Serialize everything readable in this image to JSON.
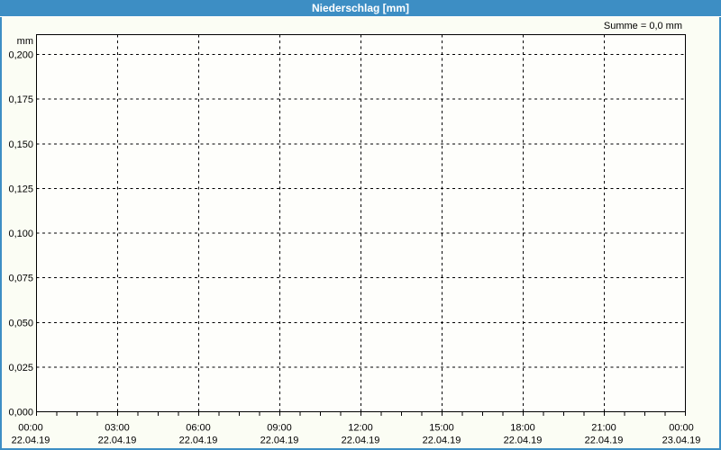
{
  "colors": {
    "accent_blue": "#3d8ec4",
    "background": "#fbfdf4",
    "plot_background": "#fefefb",
    "grid": "#000000",
    "text": "#000000",
    "title_text": "#ffffff"
  },
  "chart_data": {
    "type": "bar",
    "title": "Niederschlag [mm]",
    "ylabel": "mm",
    "sum_annotation": "Summe = 0,0 mm",
    "y_tick_labels": [
      "0,200",
      "0,175",
      "0,150",
      "0,125",
      "0,100",
      "0,075",
      "0,050",
      "0,025",
      "0,000"
    ],
    "ylim": [
      0.0,
      0.21
    ],
    "y_major_step": 0.025,
    "x_ticks": [
      {
        "time": "00:00",
        "date": "22.04.19"
      },
      {
        "time": "03:00",
        "date": "22.04.19"
      },
      {
        "time": "06:00",
        "date": "22.04.19"
      },
      {
        "time": "09:00",
        "date": "22.04.19"
      },
      {
        "time": "12:00",
        "date": "22.04.19"
      },
      {
        "time": "15:00",
        "date": "22.04.19"
      },
      {
        "time": "18:00",
        "date": "22.04.19"
      },
      {
        "time": "21:00",
        "date": "22.04.19"
      },
      {
        "time": "00:00",
        "date": "23.04.19"
      }
    ],
    "x_minor_ticks_per_interval": 3,
    "grid": "dashed",
    "legend": "none",
    "series": [
      {
        "name": "Niederschlag",
        "unit": "mm",
        "sum": 0.0,
        "values": []
      }
    ]
  }
}
